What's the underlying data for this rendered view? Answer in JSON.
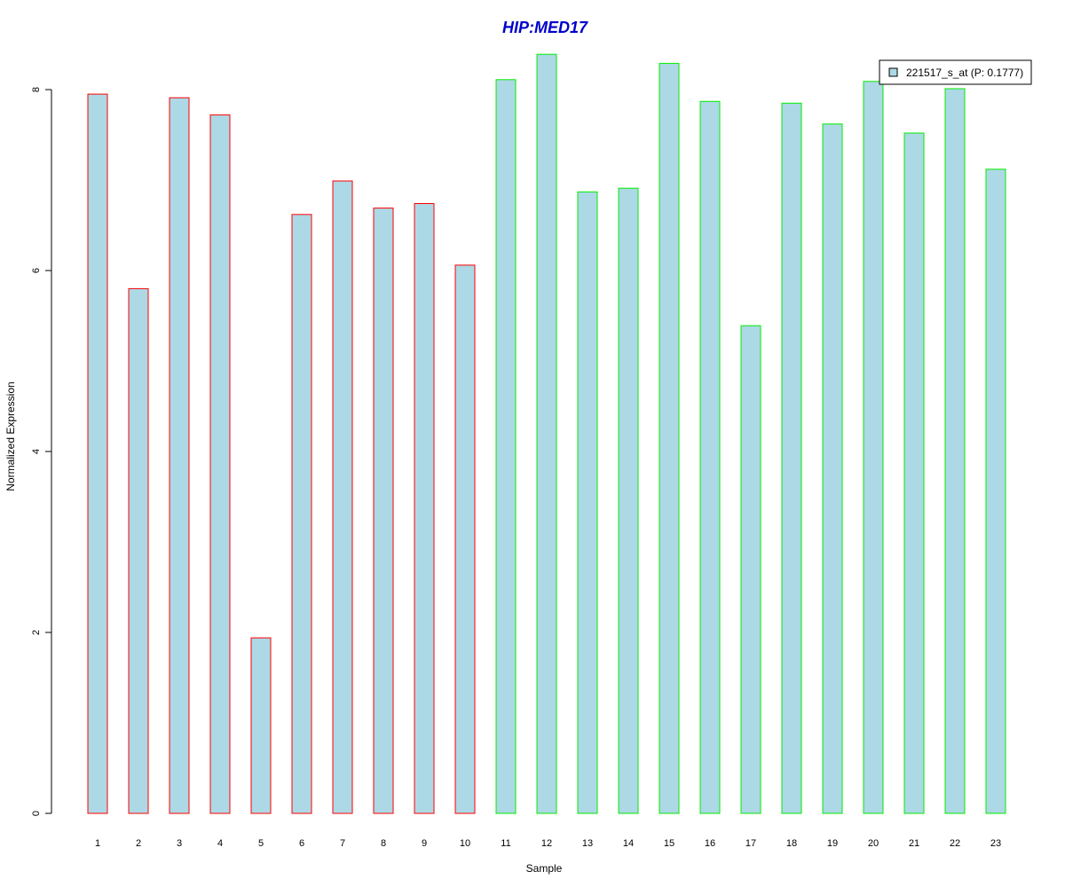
{
  "chart_data": {
    "type": "bar",
    "title": "HIP:MED17",
    "xlabel": "Sample",
    "ylabel": "Normalized Expression",
    "categories": [
      "1",
      "2",
      "3",
      "4",
      "5",
      "6",
      "7",
      "8",
      "9",
      "10",
      "11",
      "12",
      "13",
      "14",
      "15",
      "16",
      "17",
      "18",
      "19",
      "20",
      "21",
      "22",
      "23"
    ],
    "series": [
      {
        "name": "221517_s_at (P: 0.1777)",
        "values": [
          7.95,
          5.8,
          7.91,
          7.72,
          1.94,
          6.62,
          6.99,
          6.69,
          6.74,
          6.06,
          8.11,
          8.39,
          6.87,
          6.91,
          8.29,
          7.87,
          5.39,
          7.85,
          7.62,
          8.09,
          7.52,
          8.01,
          7.12
        ]
      }
    ],
    "ylim": [
      0,
      8.4
    ],
    "yticks": [
      0,
      2,
      4,
      6,
      8
    ],
    "legend_position": "top-right",
    "grid": false,
    "colors": {
      "title": "#0000cc",
      "bar_fill": "#add8e6",
      "group_outlines": [
        "#ff0000",
        "#ff0000",
        "#ff0000",
        "#ff0000",
        "#ff0000",
        "#ff0000",
        "#ff0000",
        "#ff0000",
        "#ff0000",
        "#ff0000",
        "#00ee00",
        "#00ee00",
        "#00ee00",
        "#00ee00",
        "#00ee00",
        "#00ee00",
        "#00ee00",
        "#00ee00",
        "#00ee00",
        "#00ee00",
        "#00ee00",
        "#00ee00",
        "#00ee00"
      ]
    }
  }
}
